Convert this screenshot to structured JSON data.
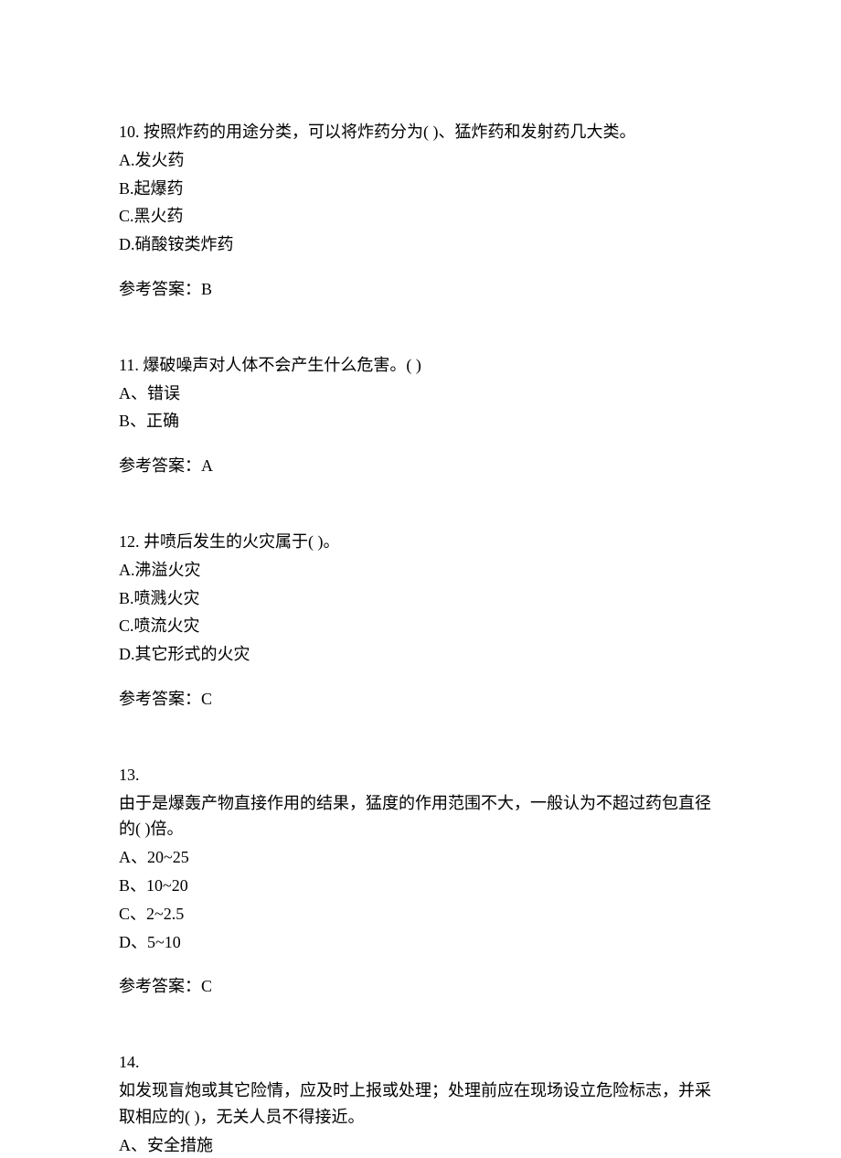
{
  "q10": {
    "number": "10.",
    "text": "按照炸药的用途分类，可以将炸药分为(  )、猛炸药和发射药几大类。",
    "options": {
      "a": "A.发火药",
      "b": "B.起爆药",
      "c": "C.黑火药",
      "d": "D.硝酸铵类炸药"
    },
    "answer_label": "参考答案：",
    "answer_value": "B"
  },
  "q11": {
    "number": "11.",
    "text": "爆破噪声对人体不会产生什么危害。(  )",
    "options": {
      "a": "A、错误",
      "b": "B、正确"
    },
    "answer_label": "参考答案：",
    "answer_value": "A"
  },
  "q12": {
    "number": "12.",
    "text": "井喷后发生的火灾属于(  )。",
    "options": {
      "a": "A.沸溢火灾",
      "b": "B.喷溅火灾",
      "c": "C.喷流火灾",
      "d": "D.其它形式的火灾"
    },
    "answer_label": "参考答案：",
    "answer_value": "C"
  },
  "q13": {
    "number": "13.",
    "text": "由于是爆轰产物直接作用的结果，猛度的作用范围不大，一般认为不超过药包直径的(  )倍。",
    "options": {
      "a": "A、20~25",
      "b": "B、10~20",
      "c": "C、2~2.5",
      "d": "D、5~10"
    },
    "answer_label": "参考答案：",
    "answer_value": "C"
  },
  "q14": {
    "number": "14.",
    "text": "如发现盲炮或其它险情，应及时上报或处理；处理前应在现场设立危险标志，并采取相应的(  )，无关人员不得接近。",
    "options": {
      "a": "A、安全措施"
    }
  }
}
